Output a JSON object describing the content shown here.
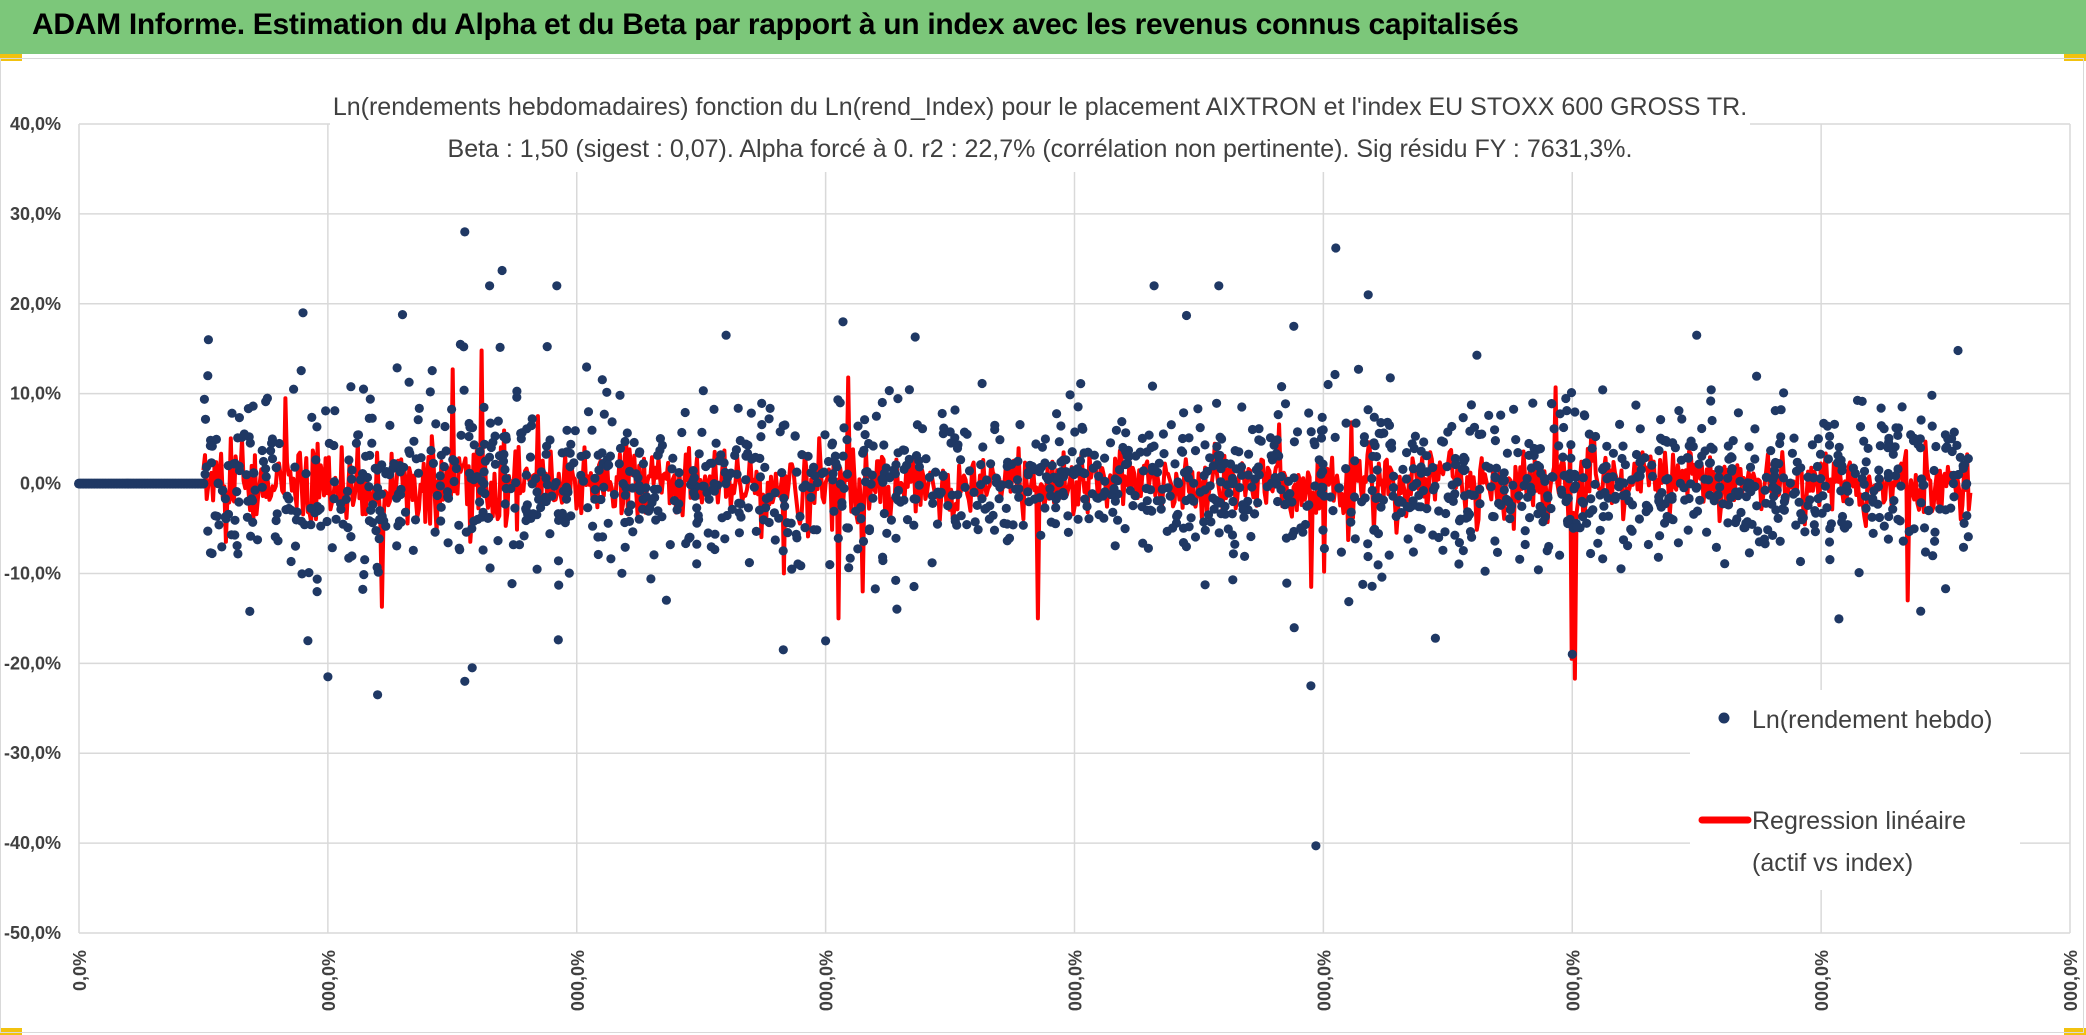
{
  "header": {
    "title": "ADAM Informe. Estimation du Alpha et du Beta par rapport à un index avec les revenus connus capitalisés"
  },
  "colors": {
    "banner": "#7cc77a",
    "points": "#1f3864",
    "regression": "#ff0000",
    "grid": "#d9d9d9",
    "text": "#404040"
  },
  "chart_data": {
    "type": "scatter",
    "title": "Ln(rendements hebdomadaires) fonction du Ln(rend_Index) pour le placement AIXTRON et l'index EU STOXX 600 GROSS TR.",
    "subtitle": "Beta : 1,50 (sigest : 0,07). Alpha forcé à 0. r2 : 22,7% (corrélation non pertinente). Sig résidu FY : 7631,3%.",
    "ylim": [
      -0.5,
      0.4
    ],
    "yticks": [
      "40,0%",
      "30,0%",
      "20,0%",
      "10,0%",
      "0,0%",
      "-10,0%",
      "-20,0%",
      "-30,0%",
      "-40,0%",
      "-50,0%"
    ],
    "xticks": [
      "0,0%",
      "000,0%",
      "000,0%",
      "000,0%",
      "000,0%",
      "000,0%",
      "000,0%",
      "000,0%",
      "000,0%"
    ],
    "legend": {
      "position": "right",
      "series1": "Ln(rendement hebdo)",
      "series2_line1": "Regression linéaire",
      "series2_line2": "(actif vs index)"
    },
    "series": [
      {
        "name": "Ln(rendement hebdo)",
        "x_range": [
          0.5,
          7.6
        ],
        "n": 1650,
        "seed": 12345,
        "flat_zero_segment": [
          0,
          0.5
        ],
        "notable_points": [
          {
            "x": 1.55,
            "y": 0.28
          },
          {
            "x": 5.05,
            "y": 0.262
          },
          {
            "x": 1.7,
            "y": 0.237
          },
          {
            "x": 1.65,
            "y": 0.22
          },
          {
            "x": 1.92,
            "y": 0.22
          },
          {
            "x": 4.58,
            "y": 0.22
          },
          {
            "x": 4.32,
            "y": 0.22
          },
          {
            "x": 5.18,
            "y": 0.21
          },
          {
            "x": 0.9,
            "y": 0.19
          },
          {
            "x": 1.3,
            "y": 0.188
          },
          {
            "x": 4.45,
            "y": 0.187
          },
          {
            "x": 3.07,
            "y": 0.18
          },
          {
            "x": 3.36,
            "y": 0.163
          },
          {
            "x": 0.52,
            "y": 0.16
          },
          {
            "x": 2.6,
            "y": 0.165
          },
          {
            "x": 6.5,
            "y": 0.165
          },
          {
            "x": 7.55,
            "y": 0.148
          },
          {
            "x": 1.0,
            "y": -0.215
          },
          {
            "x": 1.55,
            "y": -0.22
          },
          {
            "x": 1.2,
            "y": -0.235
          },
          {
            "x": 2.83,
            "y": -0.185
          },
          {
            "x": 4.95,
            "y": -0.225
          },
          {
            "x": 4.97,
            "y": -0.403
          },
          {
            "x": 6.0,
            "y": -0.19
          },
          {
            "x": 5.45,
            "y": -0.172
          },
          {
            "x": 3.0,
            "y": -0.175
          },
          {
            "x": 1.58,
            "y": -0.205
          },
          {
            "x": 7.4,
            "y": -0.142
          },
          {
            "x": 7.5,
            "y": -0.117
          }
        ]
      },
      {
        "name": "Regression linéaire (actif vs index)",
        "beta": 1.5,
        "x_range": [
          0.5,
          7.6
        ],
        "n": 1100,
        "seed": 777,
        "spikes": [
          {
            "x": 1.62,
            "y": 0.148
          },
          {
            "x": 1.5,
            "y": 0.127
          },
          {
            "x": 3.09,
            "y": 0.118
          },
          {
            "x": 5.93,
            "y": 0.107
          },
          {
            "x": 0.83,
            "y": 0.095
          },
          {
            "x": 6.01,
            "y": -0.217
          },
          {
            "x": 6.0,
            "y": -0.195
          },
          {
            "x": 3.05,
            "y": -0.15
          },
          {
            "x": 3.15,
            "y": -0.12
          },
          {
            "x": 3.85,
            "y": -0.15
          },
          {
            "x": 1.22,
            "y": -0.137
          },
          {
            "x": 7.35,
            "y": -0.13
          },
          {
            "x": 4.95,
            "y": -0.115
          },
          {
            "x": 5.0,
            "y": -0.098
          },
          {
            "x": 2.83,
            "y": -0.1
          }
        ]
      }
    ]
  }
}
